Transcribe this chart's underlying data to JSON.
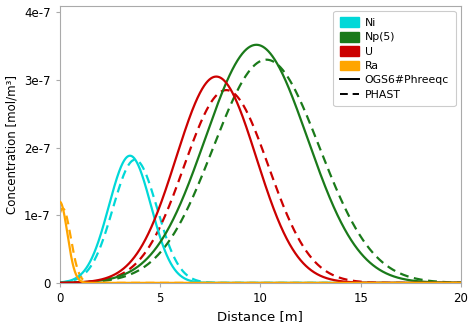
{
  "title": "",
  "xlabel": "Distance [m]",
  "ylabel": "Concentration [mol/m³]",
  "xlim": [
    0,
    20
  ],
  "ylim": [
    0,
    4.1e-07
  ],
  "species": [
    {
      "name": "Ni",
      "color": "#00d8d8",
      "solid_mu": 3.5,
      "solid_sigma": 1.05,
      "solid_amp": 1.88e-07,
      "dashed_mu": 3.75,
      "dashed_sigma": 1.1,
      "dashed_amp": 1.82e-07
    },
    {
      "name": "Np(5)",
      "color": "#1a7a1a",
      "solid_mu": 9.8,
      "solid_sigma": 2.55,
      "solid_amp": 3.52e-07,
      "dashed_mu": 10.3,
      "dashed_sigma": 2.65,
      "dashed_amp": 3.3e-07
    },
    {
      "name": "U",
      "color": "#cc0000",
      "solid_mu": 7.8,
      "solid_sigma": 2.0,
      "solid_amp": 3.05e-07,
      "dashed_mu": 8.3,
      "dashed_sigma": 2.1,
      "dashed_amp": 2.85e-07
    },
    {
      "name": "Ra",
      "color": "#FFA500",
      "solid_mu": 0.0,
      "solid_sigma": 0.38,
      "solid_amp": 1.2e-07,
      "dashed_mu": 0.15,
      "dashed_sigma": 0.4,
      "dashed_amp": 1.1e-07
    }
  ],
  "legend_solid_label": "OGS6#Phreeqc",
  "legend_dashed_label": "PHAST",
  "bg_color": "#ffffff"
}
